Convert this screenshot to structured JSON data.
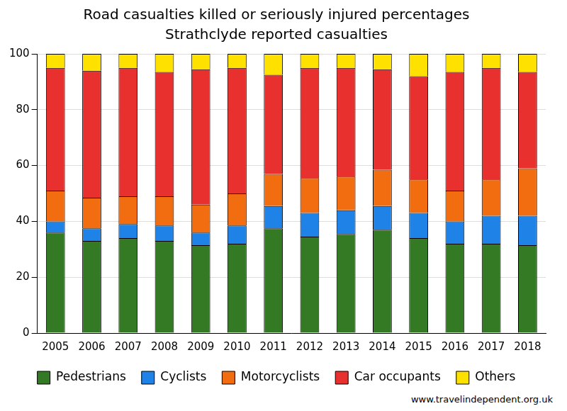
{
  "chart_data": {
    "type": "bar",
    "title": "Road casualties killed or seriously injured percentages",
    "subtitle": "Strathclyde reported casualties",
    "source": "www.travelindependent.org.uk",
    "categories": [
      "2005",
      "2006",
      "2007",
      "2008",
      "2009",
      "2010",
      "2011",
      "2012",
      "2013",
      "2014",
      "2015",
      "2016",
      "2017",
      "2018"
    ],
    "series": [
      {
        "name": "Pedestrians",
        "color": "#347a24",
        "values": [
          36,
          33,
          34,
          33,
          31.5,
          32,
          37.5,
          34.5,
          35.5,
          37,
          34,
          32,
          32,
          31.5
        ]
      },
      {
        "name": "Cyclists",
        "color": "#1f82e6",
        "values": [
          4,
          4.5,
          5,
          5.5,
          4.5,
          6.5,
          8,
          8.5,
          8.5,
          8.5,
          9,
          8,
          10,
          10.5
        ]
      },
      {
        "name": "Motorcyclists",
        "color": "#f26c10",
        "values": [
          11,
          11,
          10,
          10.5,
          10,
          11.5,
          11.5,
          12.5,
          12,
          13,
          12,
          11,
          13,
          17
        ]
      },
      {
        "name": "Car occupants",
        "color": "#e8312e",
        "values": [
          44,
          45.5,
          46,
          44.5,
          48.5,
          45,
          35.5,
          39.5,
          39,
          36,
          37,
          42.5,
          40,
          34.5
        ]
      },
      {
        "name": "Others",
        "color": "#ffe100",
        "values": [
          5,
          6,
          5,
          6.5,
          5.5,
          5,
          7.5,
          5,
          5,
          5.5,
          8,
          6.5,
          5,
          6.5
        ]
      }
    ],
    "stacked": true,
    "ylim": [
      0,
      100
    ],
    "yticks": [
      0,
      20,
      40,
      60,
      80,
      100
    ],
    "grid": true,
    "legend": "bottom"
  }
}
